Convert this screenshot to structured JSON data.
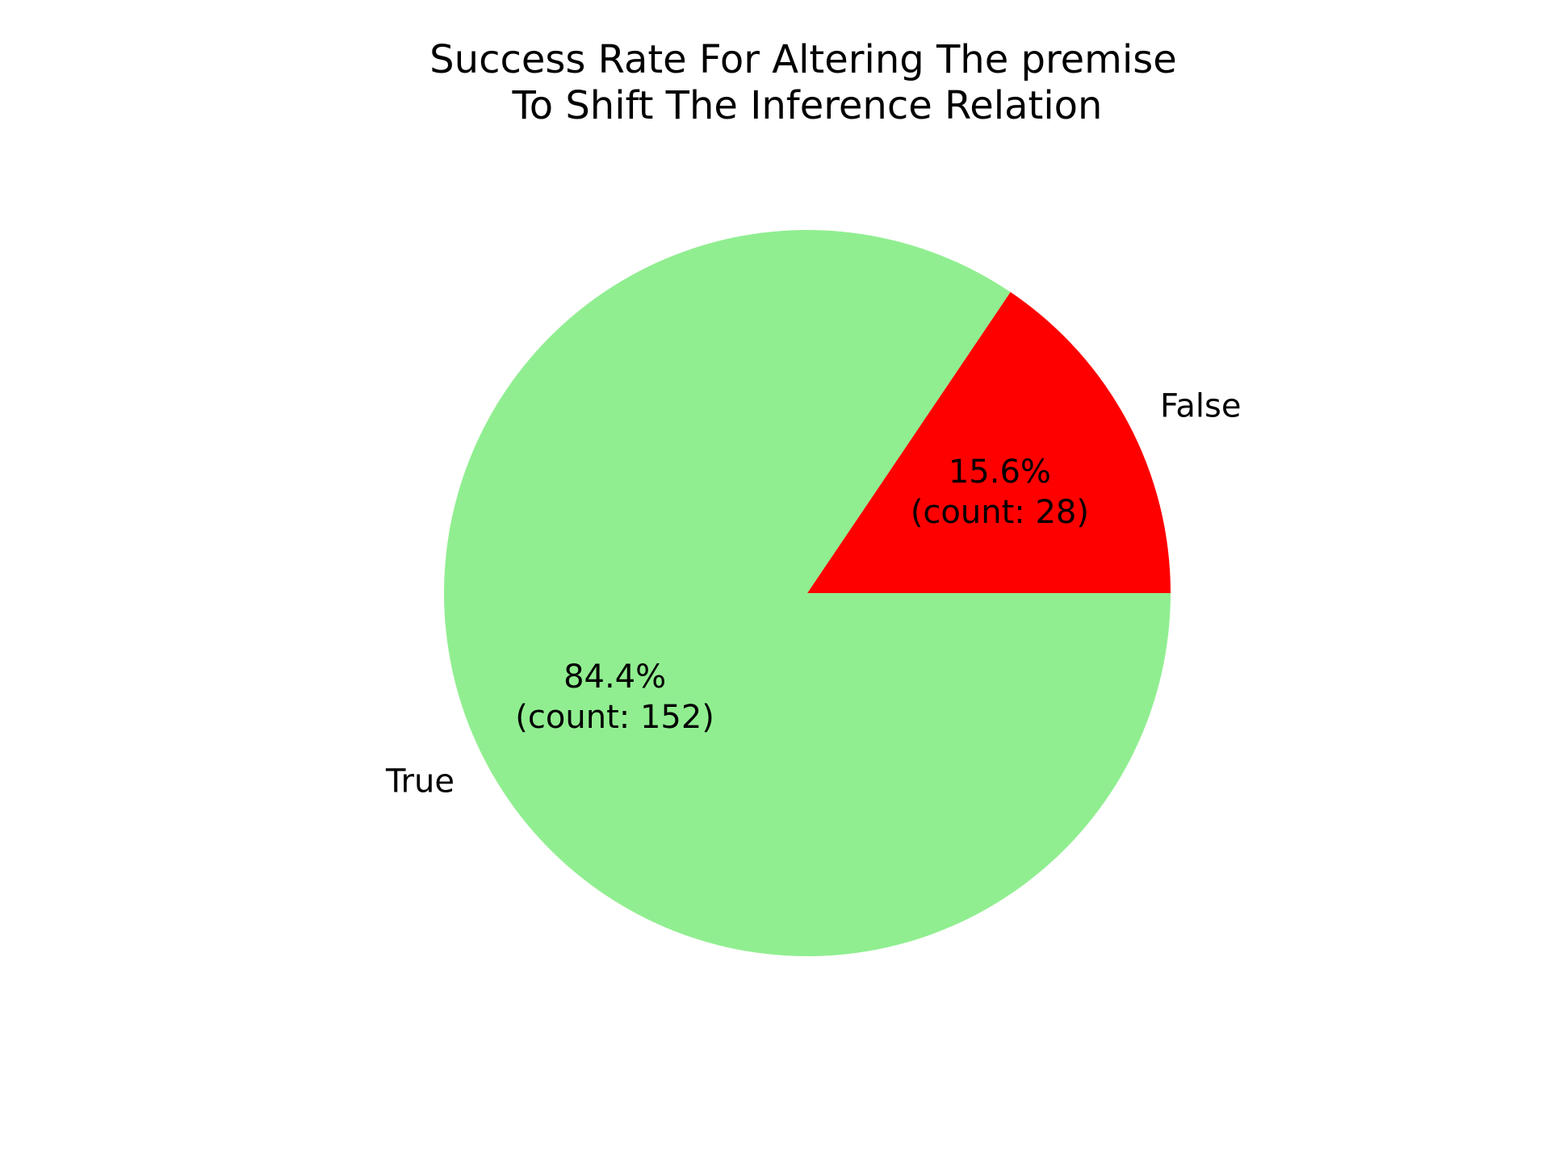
{
  "chart_data": {
    "type": "pie",
    "title": [
      "Success Rate For Altering The premise",
      "To Shift The Inference Relation"
    ],
    "slices": [
      {
        "label": "False",
        "count": 28,
        "percent": 15.6,
        "percent_text": "15.6%",
        "count_text": "(count: 28)",
        "color": "#ff0000"
      },
      {
        "label": "True",
        "count": 152,
        "percent": 84.4,
        "percent_text": "84.4%",
        "count_text": "(count: 152)",
        "color": "#90ee90"
      }
    ],
    "start_angle_deg": 0,
    "direction": "counterclockwise",
    "legend": "none"
  }
}
